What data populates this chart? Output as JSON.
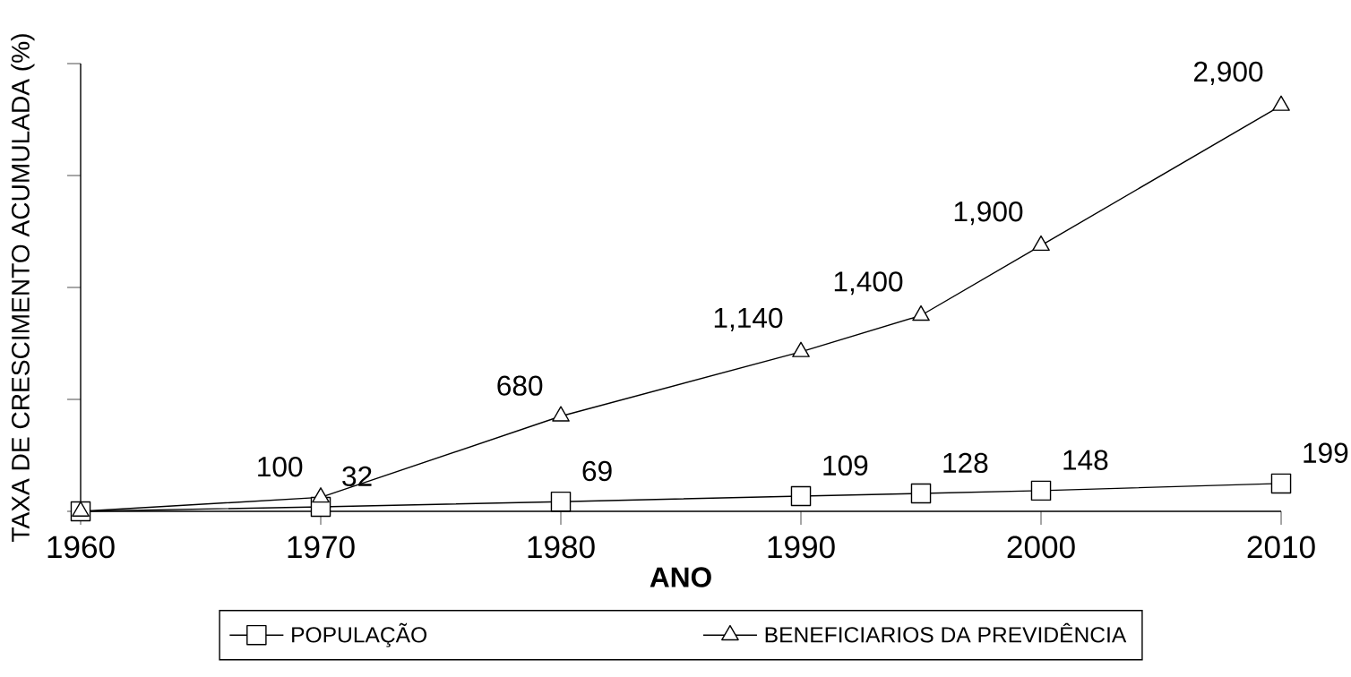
{
  "chart_data": {
    "type": "line",
    "ylabel": "TAXA DE CRESCIMENTO ACUMULADA (%)",
    "xlabel": "ANO",
    "x": [
      1960,
      1970,
      1980,
      1990,
      1995,
      2000,
      2010
    ],
    "xlim": [
      1960,
      2010
    ],
    "xticks": [
      1960,
      1970,
      1980,
      1990,
      2000,
      2010
    ],
    "ylim": [
      0,
      3200
    ],
    "yticks": [
      {
        "value": 0,
        "label": null
      },
      {
        "value": 800,
        "label": null
      },
      {
        "value": 1600,
        "label": null
      },
      {
        "value": 2400,
        "label": null
      },
      {
        "value": 3200,
        "label": null
      }
    ],
    "tick_labels": "x",
    "legend": "bottom",
    "line_style": "solid",
    "series": [
      {
        "name": "POPULAÇÃO",
        "color": "#000000",
        "marker": "square",
        "values": [
          0,
          32,
          69,
          109,
          128,
          148,
          199
        ],
        "value_labels": [
          null,
          "32",
          "69",
          "109",
          "128",
          "148",
          "199"
        ]
      },
      {
        "name": "BENEFICIARIOS DA PREVIDÊNCIA",
        "color": "#000000",
        "marker": "triangle",
        "values": [
          0,
          100,
          680,
          1140,
          1400,
          1900,
          2900
        ],
        "value_labels": [
          null,
          "100",
          "680",
          "1,140",
          "1,400",
          "1,900",
          "2,900"
        ]
      }
    ]
  }
}
